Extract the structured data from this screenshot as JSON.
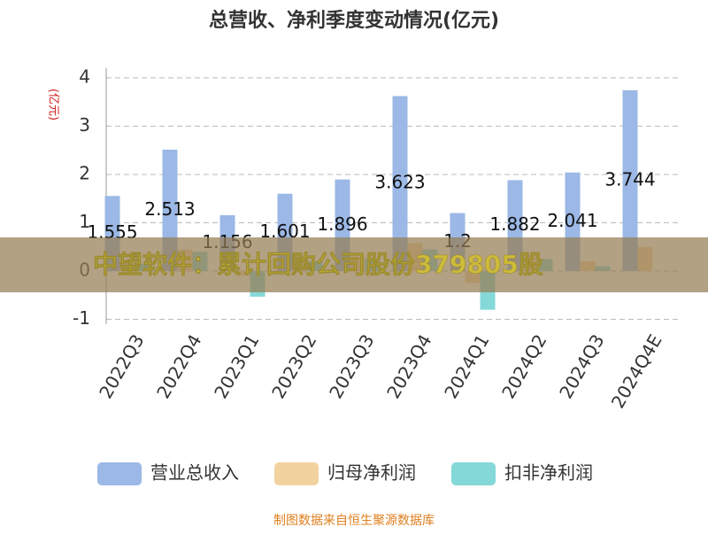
{
  "chart_data": {
    "type": "bar",
    "title": "总营收、净利季度变动情况(亿元)",
    "ylabel": "(亿元)",
    "categories": [
      "2022Q3",
      "2022Q4",
      "2023Q1",
      "2023Q2",
      "2023Q3",
      "2023Q4",
      "2024Q1",
      "2024Q2",
      "2024Q3",
      "2024Q4E"
    ],
    "series": [
      {
        "name": "营业总收入",
        "color": "#9bb8e6",
        "values": [
          1.555,
          2.513,
          1.156,
          1.601,
          1.896,
          3.623,
          1.2,
          1.882,
          2.041,
          3.744
        ]
      },
      {
        "name": "归母净利润",
        "color": "#f2d3a0",
        "values": [
          0.2,
          0.45,
          -0.1,
          0.25,
          0.3,
          0.58,
          -0.25,
          0.35,
          0.2,
          0.5
        ]
      },
      {
        "name": "扣非净利润",
        "color": "#84d8d8",
        "values": [
          0.15,
          0.4,
          -0.53,
          0.2,
          0.25,
          0.45,
          -0.8,
          0.25,
          0.1,
          null
        ]
      }
    ],
    "ylim": [
      -1.1,
      4.2
    ],
    "yticks": [
      -1,
      0,
      1,
      2,
      3,
      4
    ],
    "grid": true,
    "banner": "中望软件：累计回购公司股份379805股",
    "source": "制图数据来自恒生聚源数据库"
  }
}
